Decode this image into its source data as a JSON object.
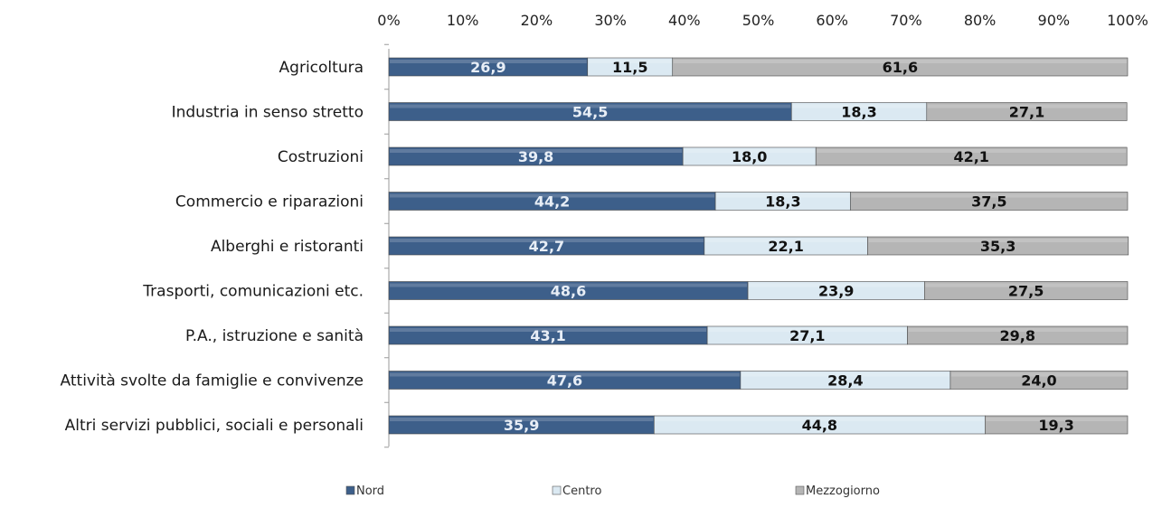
{
  "chart_data": {
    "type": "bar",
    "orientation": "horizontal",
    "stacked": "percent",
    "categories": [
      "Agricoltura",
      "Industria in senso stretto",
      "Costruzioni",
      "Commercio e riparazioni",
      "Alberghi e ristoranti",
      "Trasporti, comunicazioni etc.",
      "P.A., istruzione e sanità",
      "Attività svolte da famiglie e convivenze",
      "Altri servizi pubblici, sociali e personali"
    ],
    "series": [
      {
        "name": "Nord",
        "color": "#3d5f8a",
        "label_color": "#e8eef6",
        "values": [
          26.9,
          54.5,
          39.8,
          44.2,
          42.7,
          48.6,
          43.1,
          47.6,
          35.9
        ],
        "labels": [
          "26,9",
          "54,5",
          "39,8",
          "44,2",
          "42,7",
          "48,6",
          "43,1",
          "47,6",
          "35,9"
        ]
      },
      {
        "name": "Centro",
        "color": "#dbe9f2",
        "label_color": "#111111",
        "values": [
          11.5,
          18.3,
          18.0,
          18.3,
          22.1,
          23.9,
          27.1,
          28.4,
          44.8
        ],
        "labels": [
          "11,5",
          "18,3",
          "18,0",
          "18,3",
          "22,1",
          "23,9",
          "27,1",
          "28,4",
          "44,8"
        ]
      },
      {
        "name": "Mezzogiorno",
        "color": "#b5b5b5",
        "label_color": "#111111",
        "values": [
          61.6,
          27.1,
          42.1,
          37.5,
          35.3,
          27.5,
          29.8,
          24.0,
          19.3
        ],
        "labels": [
          "61,6",
          "27,1",
          "42,1",
          "37,5",
          "35,3",
          "27,5",
          "29,8",
          "24,0",
          "19,3"
        ]
      }
    ],
    "x_ticks": [
      "0%",
      "10%",
      "20%",
      "30%",
      "40%",
      "50%",
      "60%",
      "70%",
      "80%",
      "90%",
      "100%"
    ],
    "xlim": [
      0,
      100
    ],
    "x_axis_position": "top",
    "grid": false,
    "legend_position": "bottom"
  }
}
